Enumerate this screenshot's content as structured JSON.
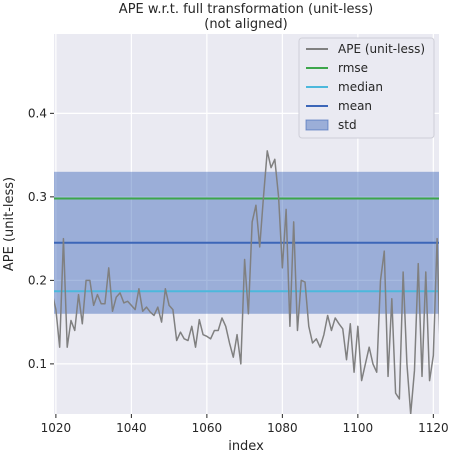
{
  "chart_data": {
    "type": "line",
    "title": [
      "APE w.r.t. full transformation (unit-less)",
      "(not aligned)"
    ],
    "xlabel": "index",
    "ylabel": "APE (unit-less)",
    "xlim": [
      1019.5,
      1121.5
    ],
    "ylim": [
      0.04,
      0.495
    ],
    "xticks": [
      1020,
      1040,
      1060,
      1080,
      1100,
      1120
    ],
    "yticks": [
      0.1,
      0.2,
      0.3,
      0.4
    ],
    "ytick_labels": [
      "0.1",
      "0.2",
      "0.3",
      "0.4"
    ],
    "grid": true,
    "legend_position": "top-right",
    "series": [
      {
        "name": "APE (unit-less)",
        "color": "#808080",
        "x_start": 1019,
        "y": [
          0.185,
          0.165,
          0.12,
          0.25,
          0.12,
          0.152,
          0.14,
          0.183,
          0.148,
          0.2,
          0.2,
          0.17,
          0.183,
          0.172,
          0.172,
          0.215,
          0.163,
          0.18,
          0.185,
          0.173,
          0.175,
          0.17,
          0.165,
          0.19,
          0.163,
          0.168,
          0.162,
          0.158,
          0.168,
          0.15,
          0.19,
          0.17,
          0.165,
          0.128,
          0.138,
          0.13,
          0.128,
          0.145,
          0.12,
          0.153,
          0.135,
          0.133,
          0.13,
          0.14,
          0.14,
          0.155,
          0.145,
          0.125,
          0.108,
          0.135,
          0.1,
          0.225,
          0.16,
          0.27,
          0.29,
          0.24,
          0.3,
          0.355,
          0.335,
          0.345,
          0.3,
          0.215,
          0.285,
          0.145,
          0.27,
          0.14,
          0.2,
          0.198,
          0.145,
          0.125,
          0.13,
          0.12,
          0.135,
          0.158,
          0.14,
          0.155,
          0.148,
          0.142,
          0.105,
          0.148,
          0.09,
          0.145,
          0.08,
          0.1,
          0.12,
          0.1,
          0.09,
          0.2,
          0.235,
          0.085,
          0.178,
          0.065,
          0.058,
          0.21,
          0.1,
          0.04,
          0.092,
          0.22,
          0.085,
          0.21,
          0.08,
          0.11,
          0.25,
          0.085
        ]
      },
      {
        "name": "rmse",
        "color": "#3da64b",
        "value": 0.298
      },
      {
        "name": "median",
        "color": "#4cb8dc",
        "value": 0.187
      },
      {
        "name": "mean",
        "color": "#3c66b8",
        "value": 0.245
      },
      {
        "name": "std",
        "color": "#3c66b8",
        "range": [
          0.16,
          0.33
        ]
      }
    ]
  }
}
